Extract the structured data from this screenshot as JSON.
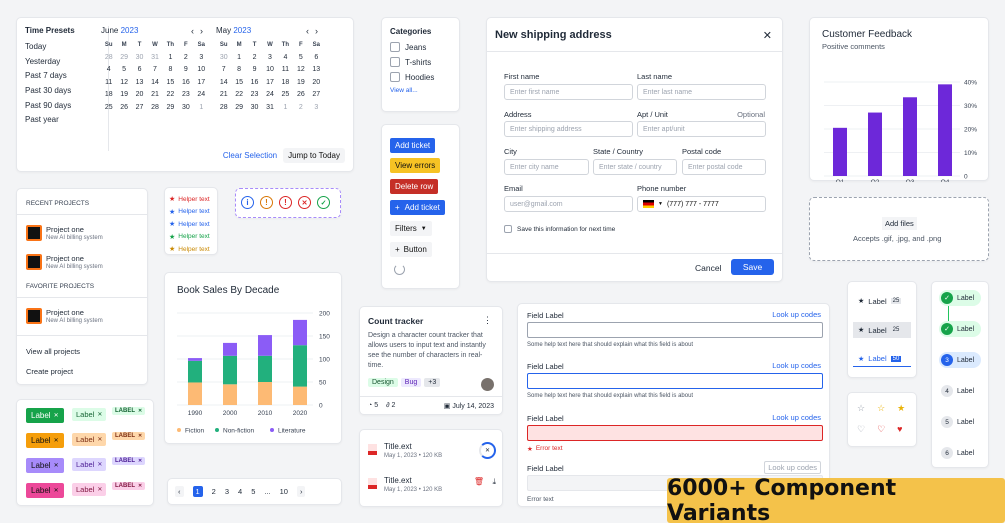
{
  "calendar": {
    "presets_title": "Time Presets",
    "presets": [
      "Today",
      "Yesterday",
      "Past 7 days",
      "Past 30 days",
      "Past 90 days",
      "Past year"
    ],
    "m1": {
      "name": "June",
      "year": "2023",
      "days": [
        "28",
        "29",
        "30",
        "31",
        "1",
        "2",
        "3",
        "4",
        "5",
        "6",
        "7",
        "8",
        "9",
        "10",
        "11",
        "12",
        "13",
        "14",
        "15",
        "16",
        "17",
        "18",
        "19",
        "20",
        "21",
        "22",
        "23",
        "24",
        "25",
        "26",
        "27",
        "28",
        "29",
        "30",
        "1"
      ],
      "out_first": 4,
      "out_last": 1
    },
    "m2": {
      "name": "May",
      "year": "2023",
      "days": [
        "30",
        "1",
        "2",
        "3",
        "4",
        "5",
        "6",
        "7",
        "8",
        "9",
        "10",
        "11",
        "12",
        "13",
        "14",
        "15",
        "16",
        "17",
        "18",
        "19",
        "20",
        "21",
        "22",
        "23",
        "24",
        "25",
        "26",
        "27",
        "28",
        "29",
        "30",
        "31",
        "1",
        "2",
        "3"
      ],
      "out_first": 1,
      "out_last": 3
    },
    "dow": [
      "Su",
      "M",
      "T",
      "W",
      "Th",
      "F",
      "Sa"
    ],
    "clear": "Clear Selection",
    "jump": "Jump to Today"
  },
  "categories": {
    "title": "Categories",
    "items": [
      "Jeans",
      "T-shirts",
      "Hoodies"
    ],
    "view_all": "View all..."
  },
  "buttons": {
    "add_ticket": "Add ticket",
    "view_errors": "View errors",
    "delete_row": "Delete row",
    "add_ticket2": "Add ticket",
    "filters": "Filters",
    "button": "Button"
  },
  "modal": {
    "title": "New shipping address",
    "first_name": "First name",
    "first_ph": "Enter first name",
    "last_name": "Last name",
    "last_ph": "Enter last name",
    "address": "Address",
    "address_ph": "Enter shipping address",
    "apt": "Apt / Unit",
    "optional": "Optional",
    "apt_ph": "Enter apt/unit",
    "city": "City",
    "city_ph": "Enter city name",
    "state": "State / Country",
    "state_ph": "Enter state / country",
    "postal": "Postal code",
    "postal_ph": "Enter postal code",
    "email": "Email",
    "email_ph": "user@gmail.com",
    "phone": "Phone number",
    "phone_val": "(777) 777 - 7777",
    "save_info": "Save this information for next time",
    "cancel": "Cancel",
    "save": "Save"
  },
  "feedback": {
    "title": "Customer Feedback",
    "subtitle": "Positive comments"
  },
  "chart_data": [
    {
      "type": "bar",
      "title": "Customer Feedback",
      "subtitle": "Positive comments",
      "categories": [
        "Q1",
        "Q2",
        "Q3",
        "Q4"
      ],
      "values": [
        20.5,
        27,
        33.5,
        39
      ],
      "ylim": [
        0,
        40
      ],
      "yticks": [
        "0",
        "10%",
        "20%",
        "30%",
        "40%"
      ],
      "color": "#6d28d9"
    },
    {
      "type": "bar",
      "stacked": true,
      "title": "Book Sales By Decade",
      "categories": [
        "1990",
        "2000",
        "2010",
        "2020"
      ],
      "yticks": [
        "0",
        "50",
        "100",
        "150",
        "200"
      ],
      "ylim": [
        0,
        200
      ],
      "series": [
        {
          "name": "Fiction",
          "color": "#fdba74",
          "values": [
            49,
            45,
            50,
            40
          ]
        },
        {
          "name": "Non-fiction",
          "color": "#22b07d",
          "values": [
            47,
            62,
            57,
            90
          ]
        },
        {
          "name": "Literature",
          "color": "#8b5cf6",
          "values": [
            6,
            28,
            45,
            55
          ]
        }
      ]
    }
  ],
  "upload": {
    "button": "Add files",
    "hint": "Accepts .gif, .jpg, and .png"
  },
  "projects": {
    "recent": "RECENT PROJECTS",
    "fav": "FAVORITE PROJECTS",
    "p1": "Project one",
    "p1s": "New AI billing system",
    "view_all": "View all projects",
    "create": "Create project"
  },
  "helper": [
    "Helper text",
    "Helper text",
    "Helper text",
    "Helper text",
    "Helper text"
  ],
  "count": {
    "title": "Count tracker",
    "desc": "Design a character count tracker that allows users to input text and instantly see the number of characters in real-time.",
    "tags": [
      "Design",
      "Bug",
      "+3"
    ],
    "comments": "5",
    "attach": "2",
    "date": "July 14, 2023"
  },
  "files": [
    {
      "name": "Title.ext",
      "meta": "May 1, 2023  •  120 KB"
    },
    {
      "name": "Title.ext",
      "meta": "May 1, 2023  •  120 KB"
    }
  ],
  "fields": {
    "label": "Field Label",
    "lookup": "Look up codes",
    "help": "Some help text here that should explain what this field is about",
    "error": "Error text"
  },
  "tabs": {
    "label": "Label",
    "c1": "25",
    "c2": "25",
    "c3": "50"
  },
  "steps": {
    "label": "Label",
    "nums": [
      "3",
      "4",
      "5",
      "6"
    ]
  },
  "tags": {
    "label": "Label",
    "label_caps": "LABEL"
  },
  "pager": {
    "pages": [
      "1",
      "2",
      "3",
      "4",
      "5",
      "...",
      "10"
    ]
  },
  "banner": "6000+ Component Variants"
}
